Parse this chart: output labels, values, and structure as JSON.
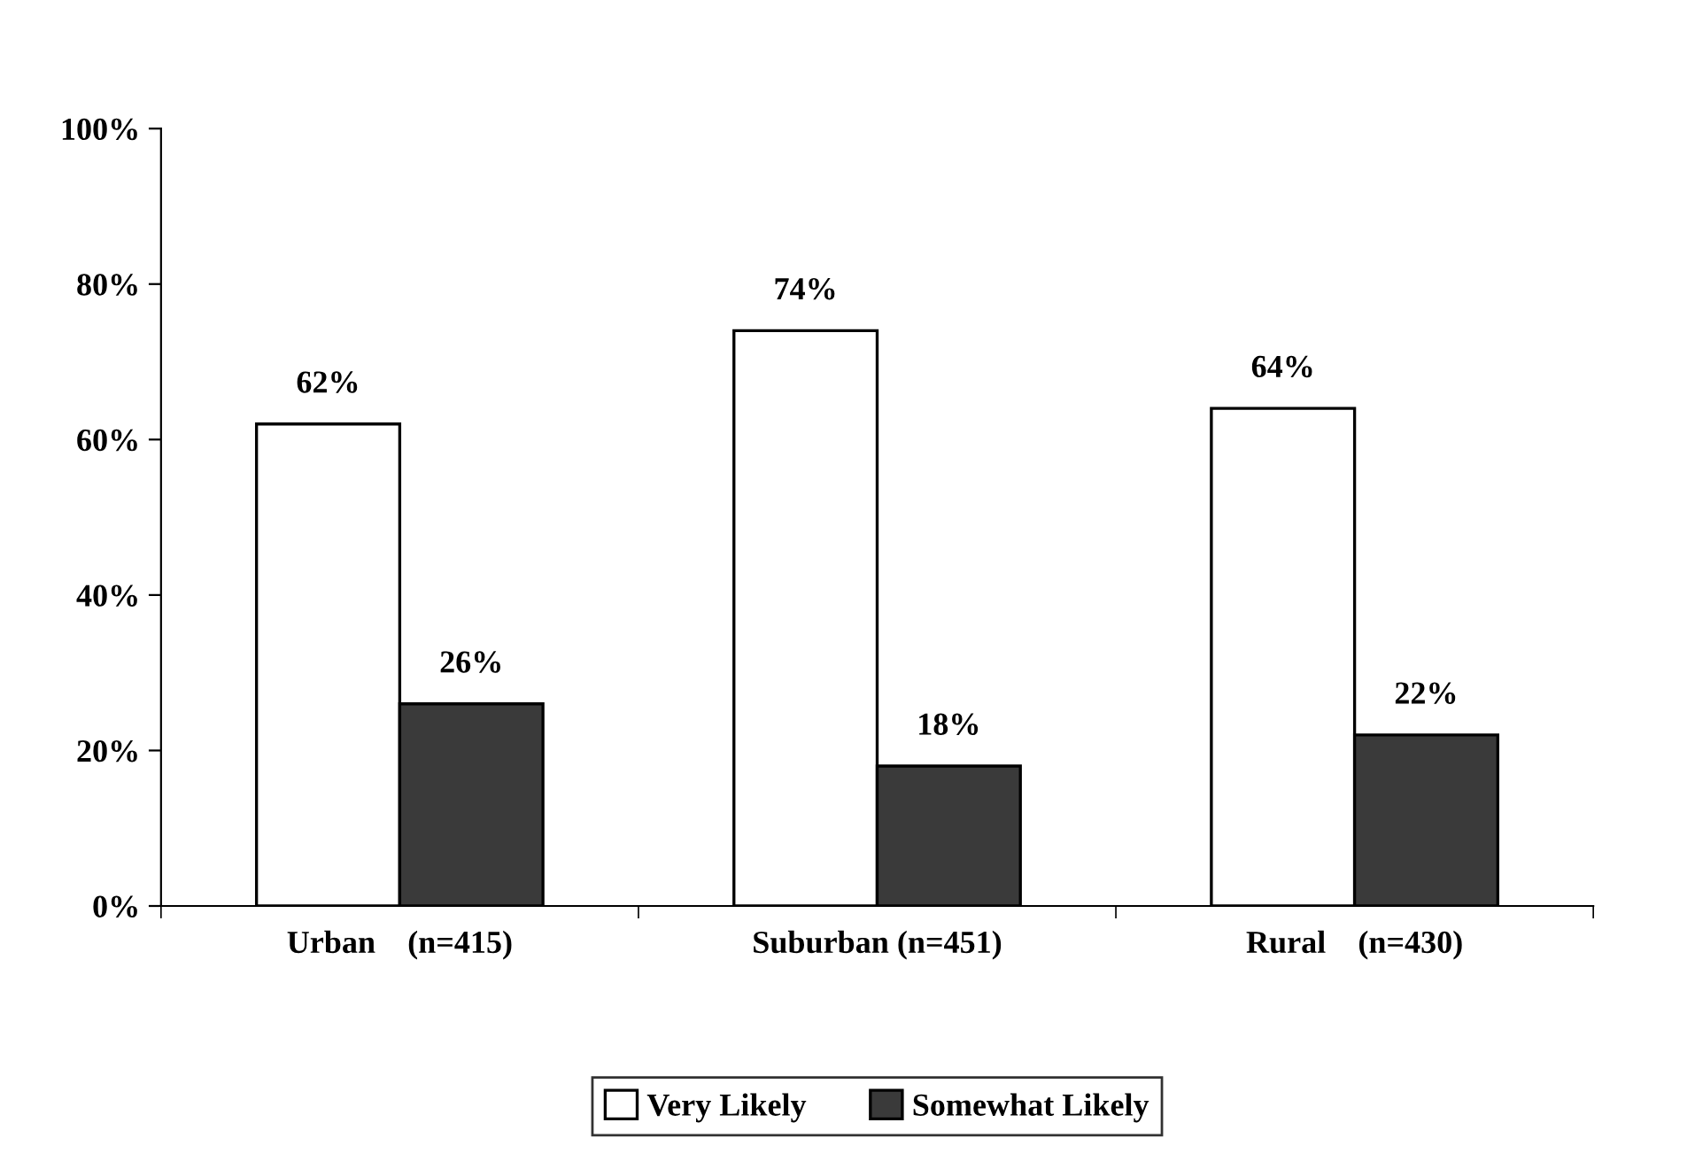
{
  "chart_data": {
    "type": "bar",
    "categories": [
      "Urban    (n=415)",
      "Suburban (n=451)",
      "Rural    (n=430)"
    ],
    "series": [
      {
        "name": "Very Likely",
        "color": "#ffffff",
        "values": [
          62,
          74,
          64
        ],
        "value_labels": [
          "62%",
          "74%",
          "64%"
        ]
      },
      {
        "name": "Somewhat Likely",
        "color": "#3a3a3a",
        "values": [
          26,
          18,
          22
        ],
        "value_labels": [
          "26%",
          "18%",
          "22%"
        ]
      }
    ],
    "ylim": [
      0,
      100
    ],
    "yticks": [
      {
        "value": 0,
        "label": "0%"
      },
      {
        "value": 20,
        "label": "20%"
      },
      {
        "value": 40,
        "label": "40%"
      },
      {
        "value": 60,
        "label": "60%"
      },
      {
        "value": 80,
        "label": "80%"
      },
      {
        "value": 100,
        "label": "100%"
      }
    ],
    "grid": false,
    "legend": "bottom"
  }
}
